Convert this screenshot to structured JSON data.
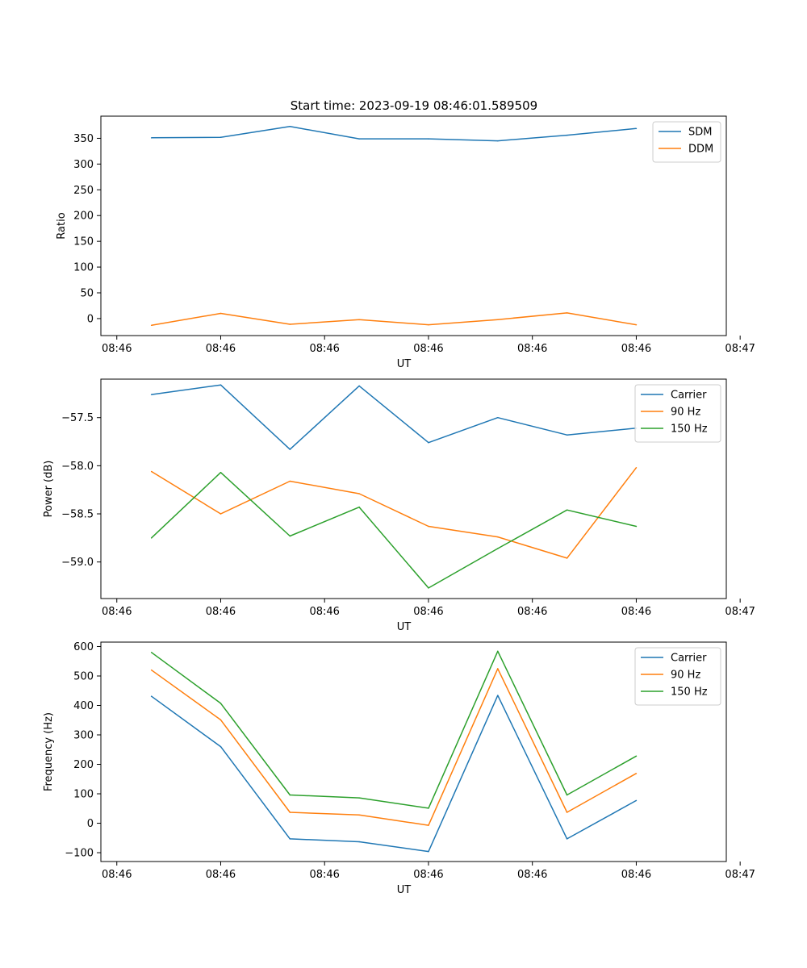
{
  "figure": {
    "title": "Start time: 2023-09-19 08:46:01.589509"
  },
  "chart_data": [
    {
      "type": "line",
      "title": "Start time: 2023-09-19 08:46:01.589509",
      "xlabel": "UT",
      "ylabel": "Ratio",
      "x": [
        1,
        2,
        3,
        4,
        5,
        6,
        7,
        8
      ],
      "xlim": [
        0.27,
        9.3
      ],
      "x_ticks": [
        0.5,
        2,
        3.5,
        5,
        6.5,
        8,
        9.5
      ],
      "x_tick_labels": [
        "08:46",
        "08:46",
        "08:46",
        "08:46",
        "08:46",
        "08:46",
        "08:47"
      ],
      "ylim": [
        -33,
        393
      ],
      "y_ticks": [
        0,
        50,
        100,
        150,
        200,
        250,
        300,
        350
      ],
      "y_tick_labels": [
        "0",
        "50",
        "100",
        "150",
        "200",
        "250",
        "300",
        "350"
      ],
      "legend": "top-right",
      "series": [
        {
          "name": "SDM",
          "color": "#1f77b4",
          "values": [
            351,
            352,
            373,
            349,
            349,
            345,
            356,
            369
          ]
        },
        {
          "name": "DDM",
          "color": "#ff7f0e",
          "values": [
            -13,
            10,
            -11,
            -2,
            -12,
            -2,
            11,
            -12
          ]
        }
      ]
    },
    {
      "type": "line",
      "title": "",
      "xlabel": "UT",
      "ylabel": "Power (dB)",
      "x": [
        1,
        2,
        3,
        4,
        5,
        6,
        7,
        8
      ],
      "xlim": [
        0.27,
        9.3
      ],
      "x_ticks": [
        0.5,
        2,
        3.5,
        5,
        6.5,
        8,
        9.5
      ],
      "x_tick_labels": [
        "08:46",
        "08:46",
        "08:46",
        "08:46",
        "08:46",
        "08:46",
        "08:47"
      ],
      "ylim": [
        -59.38,
        -57.1
      ],
      "y_ticks": [
        -59.0,
        -58.5,
        -58.0,
        -57.5
      ],
      "y_tick_labels": [
        "−59.0",
        "−58.5",
        "−58.0",
        "−57.5"
      ],
      "legend": "top-right",
      "series": [
        {
          "name": "Carrier",
          "color": "#1f77b4",
          "values": [
            -57.26,
            -57.16,
            -57.83,
            -57.17,
            -57.76,
            -57.5,
            -57.68,
            -57.61
          ]
        },
        {
          "name": "90 Hz",
          "color": "#ff7f0e",
          "values": [
            -58.06,
            -58.5,
            -58.16,
            -58.29,
            -58.63,
            -58.74,
            -58.96,
            -58.02
          ]
        },
        {
          "name": "150 Hz",
          "color": "#2ca02c",
          "values": [
            -58.75,
            -58.07,
            -58.73,
            -58.43,
            -59.27,
            -58.86,
            -58.46,
            -58.63
          ]
        }
      ]
    },
    {
      "type": "line",
      "title": "",
      "xlabel": "UT",
      "ylabel": "Frequency (Hz)",
      "x": [
        1,
        2,
        3,
        4,
        5,
        6,
        7,
        8
      ],
      "xlim": [
        0.27,
        9.3
      ],
      "x_ticks": [
        0.5,
        2,
        3.5,
        5,
        6.5,
        8,
        9.5
      ],
      "x_tick_labels": [
        "08:46",
        "08:46",
        "08:46",
        "08:46",
        "08:46",
        "08:46",
        "08:47"
      ],
      "ylim": [
        -130,
        615
      ],
      "y_ticks": [
        -100,
        0,
        100,
        200,
        300,
        400,
        500,
        600
      ],
      "y_tick_labels": [
        "−100",
        "0",
        "100",
        "200",
        "300",
        "400",
        "500",
        "600"
      ],
      "legend": "top-right",
      "series": [
        {
          "name": "Carrier",
          "color": "#1f77b4",
          "values": [
            431,
            260,
            -53,
            -63,
            -96,
            434,
            -53,
            77
          ]
        },
        {
          "name": "90 Hz",
          "color": "#ff7f0e",
          "values": [
            520,
            351,
            37,
            28,
            -7,
            525,
            37,
            169
          ]
        },
        {
          "name": "150 Hz",
          "color": "#2ca02c",
          "values": [
            580,
            407,
            96,
            86,
            51,
            584,
            96,
            228
          ]
        }
      ]
    }
  ]
}
